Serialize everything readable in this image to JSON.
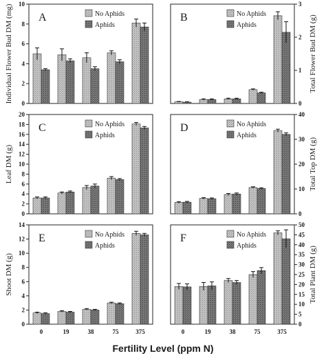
{
  "colors": {
    "no_aphids": "#b8b8b8",
    "aphids": "#6e6e6e"
  },
  "chart_data": [
    {
      "type": "bar",
      "letter": "A",
      "ylabel": "Individual Flower Bud DM (mg)",
      "categories": [
        "0",
        "19",
        "38",
        "75",
        "375"
      ],
      "ylim": [
        0,
        10
      ],
      "yticks": [
        "0",
        "2",
        "4",
        "6",
        "8",
        "10"
      ],
      "series": [
        {
          "name": "No Aphids",
          "values": [
            5.0,
            4.9,
            4.6,
            5.1,
            8.1
          ],
          "errors": [
            0.6,
            0.6,
            0.5,
            0.2,
            0.4
          ]
        },
        {
          "name": "Aphids",
          "values": [
            3.4,
            4.3,
            3.5,
            4.2,
            7.7
          ],
          "errors": [
            0.1,
            0.2,
            0.2,
            0.2,
            0.4
          ]
        }
      ]
    },
    {
      "type": "bar",
      "letter": "B",
      "ylabel": "Total Flower Bud DM (g)",
      "categories": [
        "0",
        "19",
        "38",
        "75",
        "375"
      ],
      "ylim": [
        0,
        3
      ],
      "yticks": [
        "0",
        "1",
        "2",
        "3"
      ],
      "series": [
        {
          "name": "No Aphids",
          "values": [
            0.05,
            0.12,
            0.14,
            0.42,
            2.65
          ],
          "errors": [
            0.01,
            0.02,
            0.02,
            0.02,
            0.12
          ]
        },
        {
          "name": "Aphids",
          "values": [
            0.04,
            0.12,
            0.14,
            0.32,
            2.15
          ],
          "errors": [
            0.01,
            0.02,
            0.02,
            0.02,
            0.32
          ]
        }
      ]
    },
    {
      "type": "bar",
      "letter": "C",
      "ylabel": "Leaf DM (g)",
      "categories": [
        "0",
        "19",
        "38",
        "75",
        "375"
      ],
      "ylim": [
        0,
        20
      ],
      "yticks": [
        "0",
        "2",
        "4",
        "6",
        "8",
        "10",
        "12",
        "14",
        "16",
        "18",
        "20"
      ],
      "series": [
        {
          "name": "No Aphids",
          "values": [
            3.2,
            4.2,
            5.3,
            7.2,
            18.1
          ],
          "errors": [
            0.2,
            0.2,
            0.4,
            0.3,
            0.3
          ]
        },
        {
          "name": "Aphids",
          "values": [
            3.2,
            4.4,
            5.6,
            6.9,
            17.3
          ],
          "errors": [
            0.2,
            0.2,
            0.4,
            0.2,
            0.3
          ]
        }
      ]
    },
    {
      "type": "bar",
      "letter": "D",
      "ylabel": "Total Top DM (g)",
      "categories": [
        "0",
        "19",
        "38",
        "75",
        "375"
      ],
      "ylim": [
        0,
        40
      ],
      "yticks": [
        "0",
        "10",
        "20",
        "30",
        "40"
      ],
      "series": [
        {
          "name": "No Aphids",
          "values": [
            4.6,
            6.2,
            7.8,
            10.6,
            33.5
          ],
          "errors": [
            0.3,
            0.3,
            0.4,
            0.3,
            0.6
          ]
        },
        {
          "name": "Aphids",
          "values": [
            4.7,
            6.1,
            8.0,
            10.2,
            32.0
          ],
          "errors": [
            0.3,
            0.3,
            0.4,
            0.3,
            0.6
          ]
        }
      ]
    },
    {
      "type": "bar",
      "letter": "E",
      "ylabel": "Shoot DM (g)",
      "categories": [
        "0",
        "19",
        "38",
        "75",
        "375"
      ],
      "ylim": [
        0,
        14
      ],
      "yticks": [
        "0",
        "2",
        "4",
        "6",
        "8",
        "10",
        "12",
        "14"
      ],
      "series": [
        {
          "name": "No Aphids",
          "values": [
            1.6,
            1.8,
            2.1,
            3.0,
            12.8
          ],
          "errors": [
            0.1,
            0.1,
            0.1,
            0.1,
            0.3
          ]
        },
        {
          "name": "Aphids",
          "values": [
            1.5,
            1.7,
            2.0,
            2.9,
            12.6
          ],
          "errors": [
            0.1,
            0.1,
            0.1,
            0.1,
            0.2
          ]
        }
      ]
    },
    {
      "type": "bar",
      "letter": "F",
      "ylabel": "Total Plant DM (g)",
      "categories": [
        "0",
        "19",
        "38",
        "75",
        "375"
      ],
      "ylim": [
        0,
        50
      ],
      "yticks": [
        "0",
        "5",
        "10",
        "15",
        "20",
        "25",
        "30",
        "35",
        "40",
        "45",
        "50"
      ],
      "series": [
        {
          "name": "No Aphids",
          "values": [
            19.0,
            19.0,
            22.0,
            25.0,
            46.0
          ],
          "errors": [
            1.5,
            2.0,
            1.0,
            1.5,
            1.0
          ]
        },
        {
          "name": "Aphids",
          "values": [
            18.8,
            19.3,
            21.0,
            27.0,
            43.0
          ],
          "errors": [
            1.5,
            2.0,
            1.0,
            1.5,
            4.5
          ]
        }
      ]
    }
  ],
  "xlabel": "Fertility Level (ppm N)",
  "legend": {
    "no_aphids": "No Aphids",
    "aphids": "Aphids"
  }
}
